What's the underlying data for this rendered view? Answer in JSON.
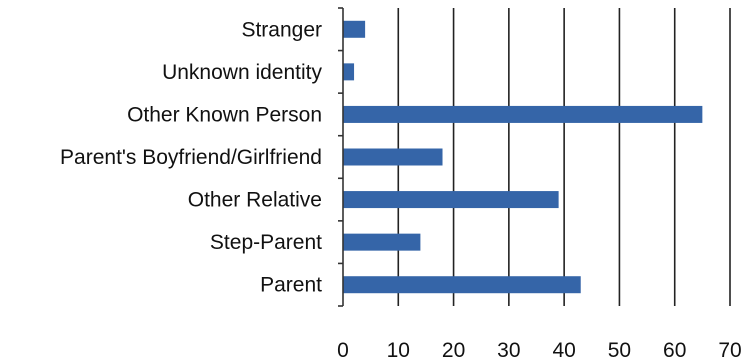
{
  "chart_data": {
    "type": "bar",
    "orientation": "horizontal",
    "categories": [
      "Stranger",
      "Unknown identity",
      "Other Known Person",
      "Parent's Boyfriend/Girlfriend",
      "Other Relative",
      "Step-Parent",
      "Parent"
    ],
    "values": [
      4,
      2,
      65,
      18,
      39,
      14,
      43
    ],
    "title": "",
    "xlabel": "",
    "ylabel": "",
    "xlim": [
      0,
      70
    ],
    "x_ticks": [
      0,
      10,
      20,
      30,
      40,
      50,
      60,
      70
    ],
    "x_tick_labels": [
      "0",
      "10",
      "20",
      "30",
      "40",
      "50",
      "60",
      "70"
    ],
    "bar_color": "#3565A8",
    "grid": "vertical",
    "legend": "none"
  }
}
